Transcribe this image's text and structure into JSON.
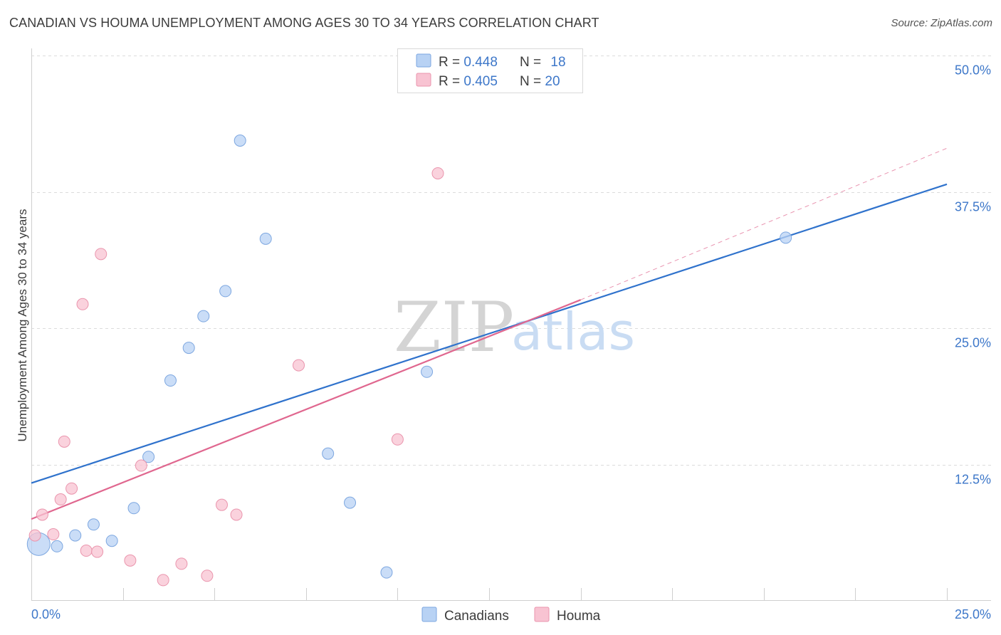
{
  "header": {
    "title": "CANADIAN VS HOUMA UNEMPLOYMENT AMONG AGES 30 TO 34 YEARS CORRELATION CHART",
    "source": "Source: ZipAtlas.com"
  },
  "watermark": {
    "zip": "ZIP",
    "atlas": "atlas"
  },
  "colors": {
    "blue_fill": "#b8d2f4",
    "blue_stroke": "#7da7e0",
    "blue_line": "#2f72cc",
    "pink_fill": "#f8c3d2",
    "pink_stroke": "#ea95ad",
    "pink_line": "#e0678f",
    "grid": "#dcdcdc",
    "axis_text": "#3d77c9"
  },
  "legend": {
    "rows": [
      {
        "r_label": "R = ",
        "r_value": "0.448",
        "n_label": "N = ",
        "n_value": "18"
      },
      {
        "r_label": "R = ",
        "r_value": "0.405",
        "n_label": "N = ",
        "n_value": "20"
      }
    ]
  },
  "bottom_legend": {
    "blue": "Canadians",
    "pink": "Houma"
  },
  "chart_data": {
    "type": "scatter",
    "title": "CANADIAN VS HOUMA UNEMPLOYMENT AMONG AGES 30 TO 34 YEARS CORRELATION CHART",
    "xlabel": "",
    "ylabel": "Unemployment Among Ages 30 to 34 years",
    "xlim": [
      0,
      25
    ],
    "ylim": [
      0,
      50
    ],
    "x_tick_labels": [
      "0.0%",
      "25.0%"
    ],
    "y_tick_values": [
      12.5,
      25,
      37.5,
      50
    ],
    "y_tick_labels": [
      "12.5%",
      "25.0%",
      "37.5%",
      "50.0%"
    ],
    "grid": true,
    "legend_position": "top-center",
    "series": [
      {
        "name": "Canadians",
        "color": "#b8d2f4",
        "R": 0.448,
        "N": 18,
        "trend": {
          "x0": 0,
          "y0": 10.8,
          "x1": 25,
          "y1": 38.2
        },
        "points": [
          {
            "x": 0.2,
            "y": 5.2,
            "big": true
          },
          {
            "x": 0.7,
            "y": 5.0
          },
          {
            "x": 1.2,
            "y": 6.0
          },
          {
            "x": 1.7,
            "y": 7.0
          },
          {
            "x": 2.2,
            "y": 5.5
          },
          {
            "x": 2.8,
            "y": 8.5
          },
          {
            "x": 3.2,
            "y": 13.2
          },
          {
            "x": 3.8,
            "y": 20.2
          },
          {
            "x": 4.3,
            "y": 23.2
          },
          {
            "x": 4.7,
            "y": 26.1
          },
          {
            "x": 5.3,
            "y": 28.4
          },
          {
            "x": 5.7,
            "y": 42.2
          },
          {
            "x": 6.4,
            "y": 33.2
          },
          {
            "x": 8.1,
            "y": 13.5
          },
          {
            "x": 8.7,
            "y": 9.0
          },
          {
            "x": 9.7,
            "y": 2.6
          },
          {
            "x": 10.8,
            "y": 21.0
          },
          {
            "x": 20.6,
            "y": 33.3
          }
        ]
      },
      {
        "name": "Houma",
        "color": "#f8c3d2",
        "R": 0.405,
        "N": 20,
        "trend": {
          "x0": 0,
          "y0": 7.5,
          "x1": 15,
          "y1": 27.6
        },
        "trend_dashed": {
          "x0": 15,
          "y0": 27.6,
          "x1": 25,
          "y1": 41.5
        },
        "points": [
          {
            "x": 0.1,
            "y": 6.0
          },
          {
            "x": 0.3,
            "y": 7.9
          },
          {
            "x": 0.6,
            "y": 6.1
          },
          {
            "x": 0.8,
            "y": 9.3
          },
          {
            "x": 0.9,
            "y": 14.6
          },
          {
            "x": 1.1,
            "y": 10.3
          },
          {
            "x": 1.4,
            "y": 27.2
          },
          {
            "x": 1.5,
            "y": 4.6
          },
          {
            "x": 1.8,
            "y": 4.5
          },
          {
            "x": 1.9,
            "y": 31.8
          },
          {
            "x": 2.7,
            "y": 3.7
          },
          {
            "x": 3.0,
            "y": 12.4
          },
          {
            "x": 3.6,
            "y": 1.9
          },
          {
            "x": 4.1,
            "y": 3.4
          },
          {
            "x": 4.8,
            "y": 2.3
          },
          {
            "x": 5.2,
            "y": 8.8
          },
          {
            "x": 5.6,
            "y": 7.9
          },
          {
            "x": 7.3,
            "y": 21.6
          },
          {
            "x": 10.0,
            "y": 14.8
          },
          {
            "x": 11.1,
            "y": 39.2
          }
        ]
      }
    ]
  }
}
